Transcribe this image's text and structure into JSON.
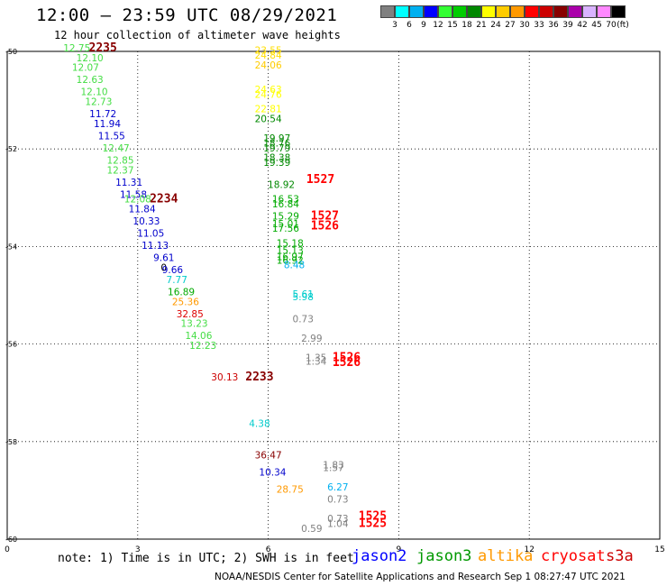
{
  "header": {
    "title": "12:00 — 23:59 UTC 08/29/2021",
    "subtitle": "12 hour collection of altimeter wave heights"
  },
  "colorbar": {
    "labels": [
      "3",
      "6",
      "9",
      "12",
      "15",
      "18",
      "21",
      "24",
      "27",
      "30",
      "33",
      "36",
      "39",
      "42",
      "45",
      "70"
    ],
    "unit": "(ft)",
    "colors": [
      "#808080",
      "#00ffff",
      "#00b0f0",
      "#0000ff",
      "#33ff33",
      "#00cc00",
      "#008800",
      "#ffff00",
      "#ffcc00",
      "#ff9900",
      "#ff0000",
      "#cc0000",
      "#880000",
      "#aa00aa",
      "#d9b3ff",
      "#ff88ff",
      "#000000"
    ]
  },
  "footer": {
    "note": "note: 1) Time is in UTC; 2) SWH is in feet",
    "missions": [
      {
        "name": "jason2",
        "color": "#0000ff"
      },
      {
        "name": "jason3",
        "color": "#009900"
      },
      {
        "name": "altika",
        "color": "#ff9900"
      },
      {
        "name": "cryosat",
        "color": "#ff0000"
      },
      {
        "name": "s3a",
        "color": "#cc0000"
      }
    ],
    "credit": "NOAA/NESDIS Center for Satellite Applications and Research    Sep  1 08:27:47 UTC 2021"
  },
  "chart_data": {
    "type": "scatter",
    "title": "12:00 — 23:59 UTC 08/29/2021",
    "subtitle": "12 hour collection of altimeter wave heights",
    "xlabel": "",
    "ylabel": "",
    "xlim": [
      0,
      15
    ],
    "ylim": [
      -60,
      -50
    ],
    "x_ticks": [
      "0",
      "3",
      "6",
      "9",
      "12",
      "15"
    ],
    "y_ticks": [
      "-50",
      "-52",
      "-54",
      "-56",
      "-58",
      "-60"
    ],
    "grid": true,
    "points": [
      {
        "x": 1.6,
        "y": -50.0,
        "label": "12.75",
        "color": "#44dd44"
      },
      {
        "x": 1.9,
        "y": -50.2,
        "label": "12.10",
        "color": "#44dd44"
      },
      {
        "x": 1.8,
        "y": -50.4,
        "label": "12.07",
        "color": "#44dd44"
      },
      {
        "x": 1.9,
        "y": -50.65,
        "label": "12.63",
        "color": "#44dd44"
      },
      {
        "x": 2.0,
        "y": -50.9,
        "label": "12.10",
        "color": "#44dd44"
      },
      {
        "x": 2.1,
        "y": -51.1,
        "label": "12.73",
        "color": "#44dd44"
      },
      {
        "x": 2.2,
        "y": -51.35,
        "label": "11.72",
        "color": "#0000cc"
      },
      {
        "x": 2.3,
        "y": -51.55,
        "label": "11.94",
        "color": "#0000cc"
      },
      {
        "x": 2.4,
        "y": -51.8,
        "label": "11.55",
        "color": "#0000cc"
      },
      {
        "x": 2.5,
        "y": -52.05,
        "label": "12.47",
        "color": "#44dd44"
      },
      {
        "x": 2.6,
        "y": -52.3,
        "label": "12.85",
        "color": "#44dd44"
      },
      {
        "x": 2.6,
        "y": -52.5,
        "label": "12.37",
        "color": "#44dd44"
      },
      {
        "x": 2.8,
        "y": -52.75,
        "label": "11.31",
        "color": "#0000cc"
      },
      {
        "x": 2.9,
        "y": -53.0,
        "label": "11.58",
        "color": "#0000cc"
      },
      {
        "x": 3.0,
        "y": -53.1,
        "label": "12.08",
        "color": "#44dd44"
      },
      {
        "x": 3.1,
        "y": -53.3,
        "label": "11.84",
        "color": "#0000cc"
      },
      {
        "x": 3.2,
        "y": -53.55,
        "label": "10.33",
        "color": "#0000cc"
      },
      {
        "x": 3.3,
        "y": -53.8,
        "label": "11.05",
        "color": "#0000cc"
      },
      {
        "x": 3.4,
        "y": -54.05,
        "label": "11.13",
        "color": "#0000cc"
      },
      {
        "x": 3.6,
        "y": -54.3,
        "label": "9.61",
        "color": "#0000cc"
      },
      {
        "x": 3.6,
        "y": -54.5,
        "label": "0",
        "color": "#000000"
      },
      {
        "x": 3.8,
        "y": -54.55,
        "label": "9.66",
        "color": "#0000cc"
      },
      {
        "x": 3.9,
        "y": -54.75,
        "label": "7.77",
        "color": "#00cccc"
      },
      {
        "x": 4.0,
        "y": -55.0,
        "label": "16.89",
        "color": "#00aa00"
      },
      {
        "x": 4.1,
        "y": -55.2,
        "label": "25.36",
        "color": "#ff9900"
      },
      {
        "x": 4.2,
        "y": -55.45,
        "label": "32.85",
        "color": "#dd0000"
      },
      {
        "x": 4.3,
        "y": -55.65,
        "label": "13.23",
        "color": "#44dd44"
      },
      {
        "x": 4.4,
        "y": -55.9,
        "label": "14.06",
        "color": "#44dd44"
      },
      {
        "x": 4.5,
        "y": -56.1,
        "label": "12.23",
        "color": "#44dd44"
      },
      {
        "x": 5.0,
        "y": -56.75,
        "label": "30.13",
        "color": "#cc0000"
      },
      {
        "x": 5.8,
        "y": -57.7,
        "label": "4.38",
        "color": "#00cccc"
      },
      {
        "x": 6.0,
        "y": -58.35,
        "label": "36.47",
        "color": "#880000"
      },
      {
        "x": 6.1,
        "y": -58.7,
        "label": "10.34",
        "color": "#0000cc"
      },
      {
        "x": 6.5,
        "y": -59.05,
        "label": "28.75",
        "color": "#ff9900"
      },
      {
        "x": 7.0,
        "y": -59.85,
        "label": "0.59",
        "color": "#808080"
      },
      {
        "x": 6.0,
        "y": -50.05,
        "label": "23.55",
        "color": "#ffdd00"
      },
      {
        "x": 6.0,
        "y": -50.15,
        "label": "24.84",
        "color": "#ffdd00"
      },
      {
        "x": 6.0,
        "y": -50.35,
        "label": "24.06",
        "color": "#ffcc00"
      },
      {
        "x": 6.0,
        "y": -50.85,
        "label": "24.63",
        "color": "#ffff00"
      },
      {
        "x": 6.0,
        "y": -50.95,
        "label": "24.76",
        "color": "#ffff00"
      },
      {
        "x": 6.0,
        "y": -51.25,
        "label": "22.81",
        "color": "#ffff00"
      },
      {
        "x": 6.0,
        "y": -51.45,
        "label": "20.54",
        "color": "#008800"
      },
      {
        "x": 6.2,
        "y": -51.85,
        "label": "19.97",
        "color": "#008800"
      },
      {
        "x": 6.2,
        "y": -51.95,
        "label": "18.76",
        "color": "#008800"
      },
      {
        "x": 6.2,
        "y": -52.05,
        "label": "19.79",
        "color": "#008800"
      },
      {
        "x": 6.2,
        "y": -52.25,
        "label": "18.38",
        "color": "#008800"
      },
      {
        "x": 6.2,
        "y": -52.35,
        "label": "19.39",
        "color": "#008800"
      },
      {
        "x": 6.3,
        "y": -52.8,
        "label": "18.92",
        "color": "#008800"
      },
      {
        "x": 6.4,
        "y": -53.1,
        "label": "16.53",
        "color": "#00aa00"
      },
      {
        "x": 6.4,
        "y": -53.2,
        "label": "16.84",
        "color": "#00aa00"
      },
      {
        "x": 6.4,
        "y": -53.45,
        "label": "15.29",
        "color": "#00aa00"
      },
      {
        "x": 6.4,
        "y": -53.6,
        "label": "15.01",
        "color": "#00aa00"
      },
      {
        "x": 6.4,
        "y": -53.7,
        "label": "17.56",
        "color": "#00aa00"
      },
      {
        "x": 6.5,
        "y": -54.0,
        "label": "15.18",
        "color": "#00aa00"
      },
      {
        "x": 6.5,
        "y": -54.15,
        "label": "15.13",
        "color": "#00aa00"
      },
      {
        "x": 6.5,
        "y": -54.28,
        "label": "16.97",
        "color": "#00aa00"
      },
      {
        "x": 6.5,
        "y": -54.35,
        "label": "16.92",
        "color": "#00aa00"
      },
      {
        "x": 6.6,
        "y": -54.45,
        "label": "8.48",
        "color": "#00b0f0"
      },
      {
        "x": 6.8,
        "y": -55.05,
        "label": "5.61",
        "color": "#00cccc"
      },
      {
        "x": 6.8,
        "y": -55.1,
        "label": "5.98",
        "color": "#00cccc"
      },
      {
        "x": 6.8,
        "y": -55.55,
        "label": "0.73",
        "color": "#808080"
      },
      {
        "x": 7.0,
        "y": -55.95,
        "label": "2.99",
        "color": "#808080"
      },
      {
        "x": 7.1,
        "y": -56.35,
        "label": "1.35",
        "color": "#808080"
      },
      {
        "x": 7.1,
        "y": -56.42,
        "label": "1.34",
        "color": "#808080"
      },
      {
        "x": 7.5,
        "y": -58.55,
        "label": "1.83",
        "color": "#808080"
      },
      {
        "x": 7.5,
        "y": -58.6,
        "label": "1.57",
        "color": "#808080"
      },
      {
        "x": 7.6,
        "y": -59.0,
        "label": "6.27",
        "color": "#00b0f0"
      },
      {
        "x": 7.6,
        "y": -59.25,
        "label": "0.73",
        "color": "#808080"
      },
      {
        "x": 7.6,
        "y": -59.65,
        "label": "0.73",
        "color": "#808080"
      },
      {
        "x": 7.6,
        "y": -59.75,
        "label": "1.04",
        "color": "#808080"
      }
    ],
    "pass_labels": [
      {
        "x": 2.2,
        "y": -50.0,
        "label": "2235",
        "color": "#880000"
      },
      {
        "x": 3.6,
        "y": -53.1,
        "label": "2234",
        "color": "#880000"
      },
      {
        "x": 5.8,
        "y": -56.75,
        "label": "2233",
        "color": "#880000"
      },
      {
        "x": 7.2,
        "y": -52.7,
        "label": "1527",
        "color": "#ff0000"
      },
      {
        "x": 7.3,
        "y": -53.45,
        "label": "1527",
        "color": "#ff0000"
      },
      {
        "x": 7.3,
        "y": -53.65,
        "label": "1526",
        "color": "#ff0000"
      },
      {
        "x": 7.8,
        "y": -56.35,
        "label": "1526",
        "color": "#ff0000"
      },
      {
        "x": 7.8,
        "y": -56.45,
        "label": "1526",
        "color": "#ff0000"
      },
      {
        "x": 8.4,
        "y": -59.6,
        "label": "1525",
        "color": "#ff0000"
      },
      {
        "x": 8.4,
        "y": -59.75,
        "label": "1525",
        "color": "#ff0000"
      }
    ]
  }
}
